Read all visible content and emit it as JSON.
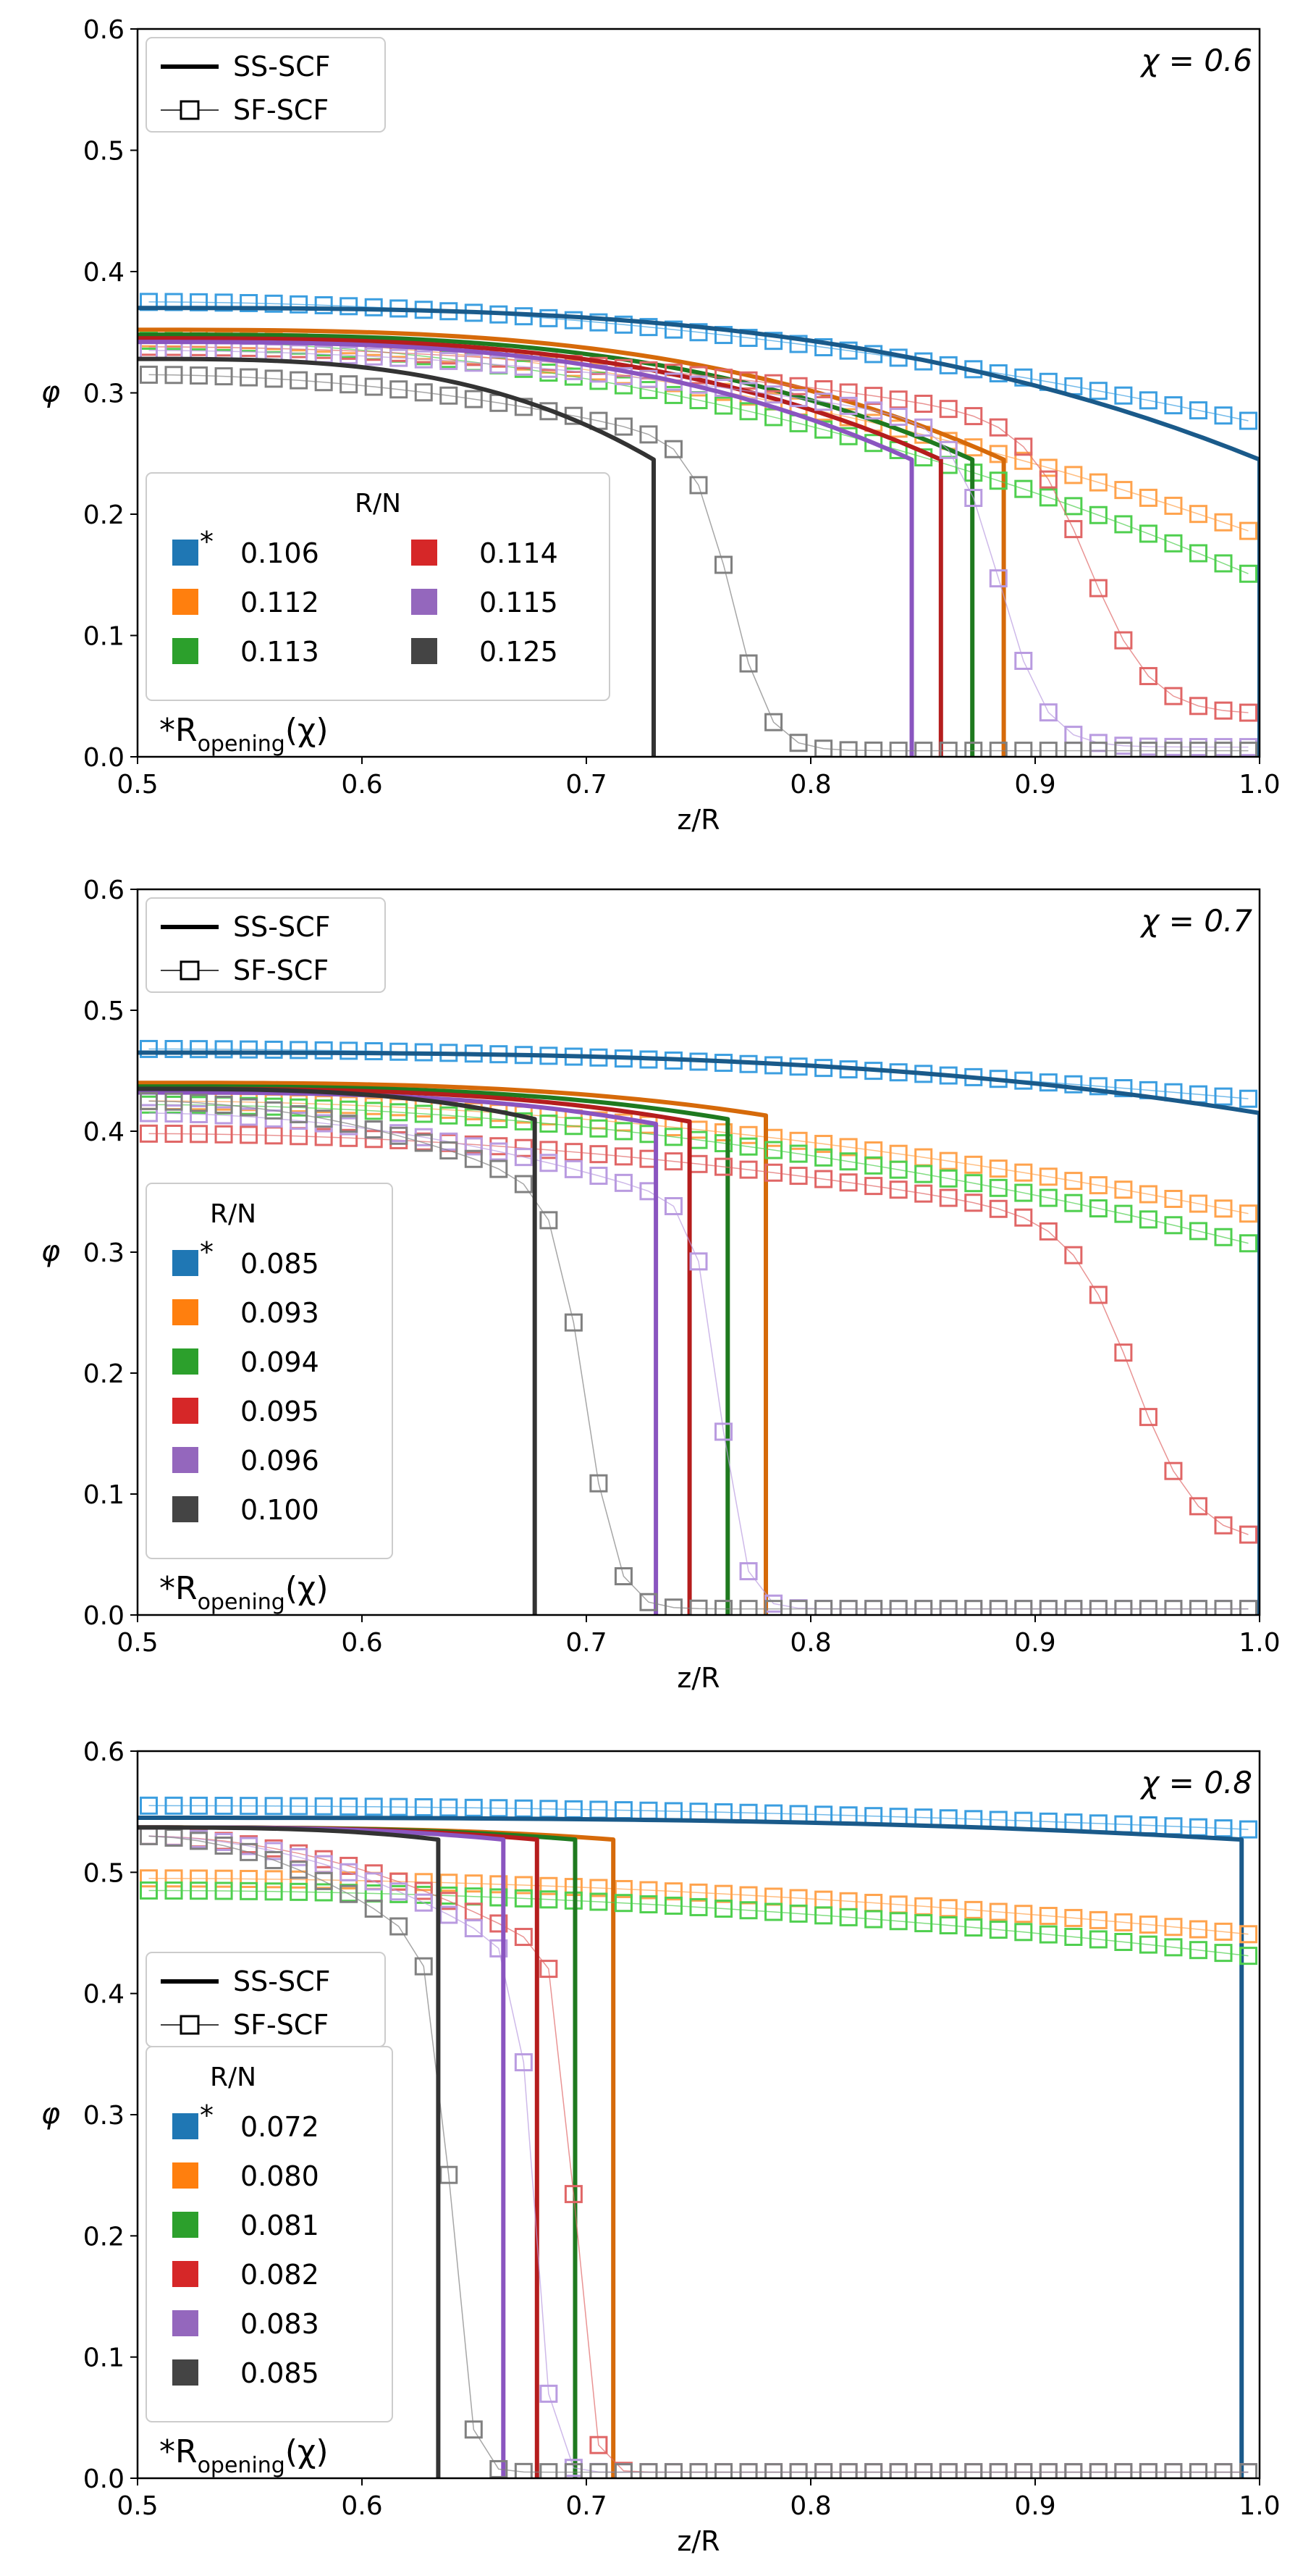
{
  "chart_data": [
    {
      "type": "line",
      "chi_label": "χ = 0.6",
      "xlabel": "z/R",
      "ylabel": "φ",
      "xlim": [
        0.5,
        1.0
      ],
      "ylim": [
        0.0,
        0.6
      ],
      "xticks": [
        "0.5",
        "0.6",
        "0.7",
        "0.8",
        "0.9",
        "1.0"
      ],
      "yticks": [
        "0.0",
        "0.1",
        "0.2",
        "0.3",
        "0.4",
        "0.5",
        "0.6"
      ],
      "style_legend": {
        "solid": "SS-SCF",
        "markers": "SF-SCF",
        "position": "top-left"
      },
      "rn_legend": {
        "title": "R/N",
        "position": "lower-left",
        "columns": 2,
        "footnote_prefix": "*R",
        "footnote_sub": "opening",
        "footnote_suffix": "(χ)"
      },
      "series": [
        {
          "name": "0.106",
          "star": true,
          "ss_top": 0.37,
          "ss_end": 1.0,
          "ss_edge": 0.245,
          "sf_start": 0.375,
          "sf_end": 0.275,
          "sf_dropc": null,
          "sf_width": 0.0,
          "sf_floor": 0.275
        },
        {
          "name": "0.112",
          "star": false,
          "ss_top": 0.352,
          "ss_end": 0.886,
          "ss_edge": 0.245,
          "sf_start": 0.345,
          "sf_end": 0.183,
          "sf_dropc": null,
          "sf_width": 0.0,
          "sf_floor": 0.183
        },
        {
          "name": "0.113",
          "star": false,
          "ss_top": 0.348,
          "ss_end": 0.872,
          "ss_edge": 0.245,
          "sf_start": 0.343,
          "sf_end": 0.147,
          "sf_dropc": null,
          "sf_width": 0.0,
          "sf_floor": 0.147
        },
        {
          "name": "0.114",
          "star": false,
          "ss_top": 0.345,
          "ss_end": 0.858,
          "ss_edge": 0.245,
          "sf_start": 0.338,
          "sf_end": 0.035,
          "sf_dropc": 0.925,
          "sf_width": 0.03,
          "sf_floor": 0.035
        },
        {
          "name": "0.115",
          "star": false,
          "ss_top": 0.342,
          "ss_end": 0.845,
          "ss_edge": 0.245,
          "sf_start": 0.335,
          "sf_end": 0.012,
          "sf_dropc": 0.885,
          "sf_width": 0.022,
          "sf_floor": 0.008
        },
        {
          "name": "0.125",
          "star": false,
          "ss_top": 0.328,
          "ss_end": 0.73,
          "ss_edge": 0.245,
          "sf_start": 0.315,
          "sf_end": 0.005,
          "sf_dropc": 0.765,
          "sf_width": 0.018,
          "sf_floor": 0.005
        }
      ]
    },
    {
      "type": "line",
      "chi_label": "χ = 0.7",
      "xlabel": "z/R",
      "ylabel": "φ",
      "xlim": [
        0.5,
        1.0
      ],
      "ylim": [
        0.0,
        0.6
      ],
      "xticks": [
        "0.5",
        "0.6",
        "0.7",
        "0.8",
        "0.9",
        "1.0"
      ],
      "yticks": [
        "0.0",
        "0.1",
        "0.2",
        "0.3",
        "0.4",
        "0.5",
        "0.6"
      ],
      "style_legend": {
        "solid": "SS-SCF",
        "markers": "SF-SCF",
        "position": "top-left"
      },
      "rn_legend": {
        "title": "R/N",
        "position": "lower-left",
        "columns": 1,
        "footnote_prefix": "*R",
        "footnote_sub": "opening",
        "footnote_suffix": "(χ)"
      },
      "series": [
        {
          "name": "0.085",
          "star": true,
          "ss_top": 0.465,
          "ss_end": 1.0,
          "ss_edge": 0.415,
          "sf_start": 0.468,
          "sf_end": 0.426,
          "sf_dropc": null,
          "sf_width": 0.0,
          "sf_floor": 0.426
        },
        {
          "name": "0.093",
          "star": false,
          "ss_top": 0.44,
          "ss_end": 0.78,
          "ss_edge": 0.413,
          "sf_start": 0.425,
          "sf_end": 0.33,
          "sf_dropc": null,
          "sf_width": 0.0,
          "sf_floor": 0.33
        },
        {
          "name": "0.094",
          "star": false,
          "ss_top": 0.437,
          "ss_end": 0.763,
          "ss_edge": 0.41,
          "sf_start": 0.422,
          "sf_end": 0.305,
          "sf_dropc": null,
          "sf_width": 0.0,
          "sf_floor": 0.305
        },
        {
          "name": "0.095",
          "star": false,
          "ss_top": 0.435,
          "ss_end": 0.746,
          "ss_edge": 0.408,
          "sf_start": 0.398,
          "sf_end": 0.085,
          "sf_dropc": 0.945,
          "sf_width": 0.03,
          "sf_floor": 0.06
        },
        {
          "name": "0.096",
          "star": false,
          "ss_top": 0.432,
          "ss_end": 0.731,
          "ss_edge": 0.406,
          "sf_start": 0.415,
          "sf_end": 0.005,
          "sf_dropc": 0.76,
          "sf_width": 0.012,
          "sf_floor": 0.005
        },
        {
          "name": "0.100",
          "star": false,
          "ss_top": 0.435,
          "ss_end": 0.677,
          "ss_edge": 0.41,
          "sf_start": 0.425,
          "sf_end": 0.005,
          "sf_dropc": 0.7,
          "sf_width": 0.015,
          "sf_floor": 0.005
        }
      ]
    },
    {
      "type": "line",
      "chi_label": "χ = 0.8",
      "xlabel": "z/R",
      "ylabel": "φ",
      "xlim": [
        0.5,
        1.0
      ],
      "ylim": [
        0.0,
        0.6
      ],
      "xticks": [
        "0.5",
        "0.6",
        "0.7",
        "0.8",
        "0.9",
        "1.0"
      ],
      "yticks": [
        "0.0",
        "0.1",
        "0.2",
        "0.3",
        "0.4",
        "0.5",
        "0.6"
      ],
      "style_legend": {
        "solid": "SS-SCF",
        "markers": "SF-SCF",
        "position": "center-left"
      },
      "rn_legend": {
        "title": "R/N",
        "position": "lower-left",
        "columns": 1,
        "footnote_prefix": "*R",
        "footnote_sub": "opening",
        "footnote_suffix": "(χ)"
      },
      "series": [
        {
          "name": "0.072",
          "star": true,
          "ss_top": 0.545,
          "ss_end": 0.992,
          "ss_edge": 0.527,
          "sf_start": 0.555,
          "sf_end": 0.535,
          "sf_dropc": null,
          "sf_width": 0.0,
          "sf_floor": 0.535
        },
        {
          "name": "0.080",
          "star": false,
          "ss_top": 0.537,
          "ss_end": 0.712,
          "ss_edge": 0.527,
          "sf_start": 0.495,
          "sf_end": 0.448,
          "sf_dropc": null,
          "sf_width": 0.0,
          "sf_floor": 0.448
        },
        {
          "name": "0.081",
          "star": false,
          "ss_top": 0.537,
          "ss_end": 0.695,
          "ss_edge": 0.527,
          "sf_start": 0.485,
          "sf_end": 0.43,
          "sf_dropc": null,
          "sf_width": 0.0,
          "sf_floor": 0.43
        },
        {
          "name": "0.082",
          "star": false,
          "ss_top": 0.537,
          "ss_end": 0.678,
          "ss_edge": 0.527,
          "sf_start": 0.53,
          "sf_end": 0.005,
          "sf_dropc": 0.695,
          "sf_width": 0.008,
          "sf_floor": 0.005
        },
        {
          "name": "0.083",
          "star": false,
          "ss_top": 0.537,
          "ss_end": 0.663,
          "ss_edge": 0.527,
          "sf_start": 0.53,
          "sf_end": 0.005,
          "sf_dropc": 0.677,
          "sf_width": 0.008,
          "sf_floor": 0.005
        },
        {
          "name": "0.085",
          "star": false,
          "ss_top": 0.537,
          "ss_end": 0.634,
          "ss_edge": 0.527,
          "sf_start": 0.53,
          "sf_end": 0.005,
          "sf_dropc": 0.64,
          "sf_width": 0.009,
          "sf_floor": 0.005
        }
      ]
    }
  ],
  "colors": {
    "ss": [
      "#1a5a8a",
      "#d66a0a",
      "#1f7a1f",
      "#b51d1d",
      "#8a55c0",
      "#333333"
    ],
    "sf": [
      "#3b9ee0",
      "#ffa34d",
      "#4fcf4f",
      "#e06666",
      "#b99be0",
      "#808080"
    ],
    "legend": [
      "#1f77b4",
      "#ff7f0e",
      "#2ca02c",
      "#d62728",
      "#9467bd",
      "#444444"
    ]
  }
}
